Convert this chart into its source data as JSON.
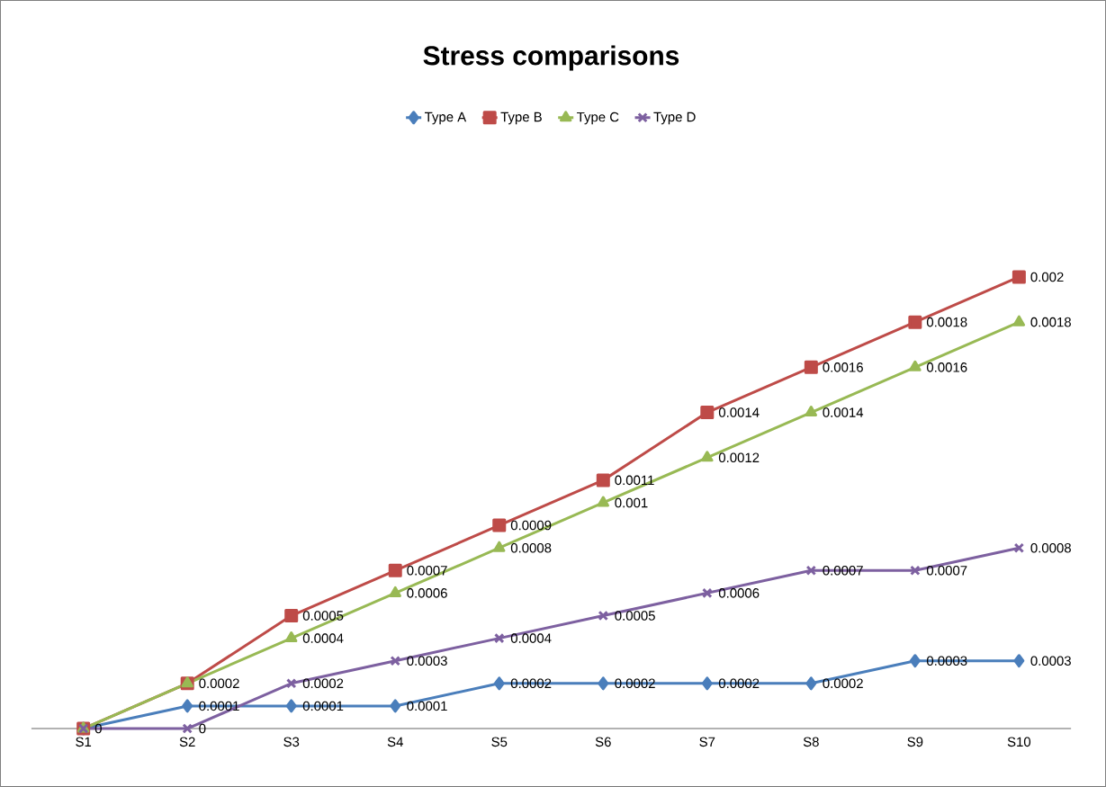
{
  "chart_data": {
    "type": "line",
    "title": "Stress comparisons",
    "categories": [
      "S1",
      "S2",
      "S3",
      "S4",
      "S5",
      "S6",
      "S7",
      "S8",
      "S9",
      "S10"
    ],
    "series": [
      {
        "name": "Type A",
        "color": "#4a7ebb",
        "marker": "diamond",
        "values": [
          0,
          0.0001,
          0.0001,
          0.0001,
          0.0002,
          0.0002,
          0.0002,
          0.0002,
          0.0003,
          0.0003
        ],
        "value_labels": [
          null,
          "0.0001",
          "0.0001",
          "0.0001",
          "0.0002",
          "0.0002",
          "0.0002",
          "0.0002",
          "0.0003",
          "0.0003"
        ]
      },
      {
        "name": "Type B",
        "color": "#be4b48",
        "marker": "square",
        "values": [
          0,
          0.0002,
          0.0005,
          0.0007,
          0.0009,
          0.0011,
          0.0014,
          0.0016,
          0.0018,
          0.002
        ],
        "value_labels": [
          "0",
          "0.0002",
          "0.0005",
          "0.0007",
          "0.0009",
          "0.0011",
          "0.0014",
          "0.0016",
          "0.0018",
          "0.002"
        ]
      },
      {
        "name": "Type C",
        "color": "#98b954",
        "marker": "triangle",
        "values": [
          0,
          0.0002,
          0.0004,
          0.0006,
          0.0008,
          0.001,
          0.0012,
          0.0014,
          0.0016,
          0.0018
        ],
        "value_labels": [
          null,
          null,
          "0.0004",
          "0.0006",
          "0.0008",
          "0.001",
          "0.0012",
          "0.0014",
          "0.0016",
          "0.0018"
        ]
      },
      {
        "name": "Type D",
        "color": "#7d60a0",
        "marker": "cross",
        "values": [
          0,
          0,
          0.0002,
          0.0003,
          0.0004,
          0.0005,
          0.0006,
          0.0007,
          0.0007,
          0.0008
        ],
        "value_labels": [
          null,
          "0",
          "0.0002",
          "0.0003",
          "0.0004",
          "0.0005",
          "0.0006",
          "0.0007",
          "0.0007",
          "0.0008"
        ]
      }
    ],
    "legend": "top",
    "grid": false,
    "line_style": "solid"
  }
}
